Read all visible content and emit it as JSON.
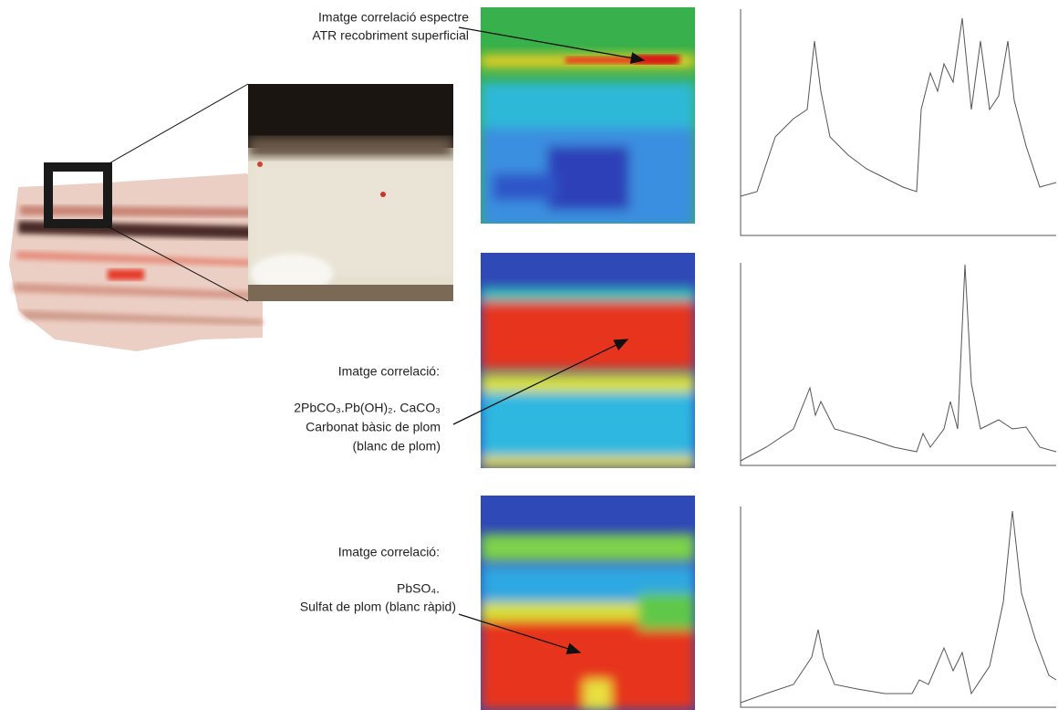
{
  "labels": [
    {
      "lines": [
        "Imatge correlació espectre",
        "ATR recobriment superficial"
      ]
    },
    {
      "lines": [
        "Imatge correlació:",
        "2PbCO₃.Pb(OH)₂. CaCO₃",
        "Carbonat bàsic de plom",
        "(blanc de plom)"
      ]
    },
    {
      "lines": [
        "Imatge correlació:",
        "PbSO₄.",
        "Sulfat de plom (blanc ràpid)"
      ]
    }
  ]
}
